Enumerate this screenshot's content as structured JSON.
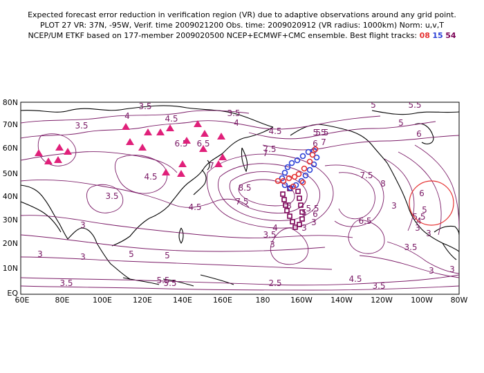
{
  "header": {
    "line1": "Expected forecast error reduction in verification region (VR) due to adaptive observations around any grid point.",
    "line2": "PLOT 27 VR: 37N, -95W, Verif. time 2009021200 Obs. time: 2009020912 (VR radius: 1000km) Norm: u,v,T",
    "line3_prefix": "NCEP/UM ETKF based on 177-member 2009020500 NCEP+ECMWF+CMC ensemble. Best flight tracks: ",
    "track_08": "08",
    "track_15": "15",
    "track_54": "54"
  },
  "axes": {
    "lat_ticks": [
      "80N",
      "70N",
      "60N",
      "50N",
      "40N",
      "30N",
      "20N",
      "10N",
      "EQ"
    ],
    "lon_ticks": [
      "60E",
      "80E",
      "100E",
      "120E",
      "140E",
      "160E",
      "180",
      "160W",
      "140W",
      "120W",
      "100W",
      "80W"
    ]
  },
  "contour_labels": [
    "3.5",
    "3.5",
    "3.5",
    "4",
    "4",
    "4.5",
    "4.5",
    "5",
    "5",
    "5.5",
    "5.5",
    "6",
    "6",
    "6.5",
    "7",
    "7",
    "7.5",
    "7.5",
    "8",
    "8.5",
    "3",
    "3",
    "3",
    "3.5",
    "3.5",
    "3.5",
    "4",
    "4.5",
    "4.5",
    "5",
    "5.5",
    "5.5",
    "6",
    "6.5",
    "7",
    "3",
    "2.5",
    "3",
    "3.5",
    "4",
    "4.5",
    "5",
    "5.5",
    "6.5",
    "6",
    "3",
    "3",
    "3.5",
    "5",
    "3",
    "7.5",
    "8",
    "5.5",
    "5.5",
    "5",
    "3",
    "3",
    "3"
  ],
  "colors": {
    "contour": "#7a1a66",
    "land_triangle": "#e0207a",
    "track_08": "#e53030",
    "track_15": "#2a3fd6",
    "track_54": "#7a0055",
    "vr_circle": "#e53030",
    "coast": "#000000"
  },
  "markers": {
    "raob_sites": "triangle",
    "track_08": "circle",
    "track_15": "circle",
    "track_54": "square"
  },
  "verification_region": {
    "center_lat": 37,
    "center_lon": -95,
    "radius_km": 1000
  }
}
